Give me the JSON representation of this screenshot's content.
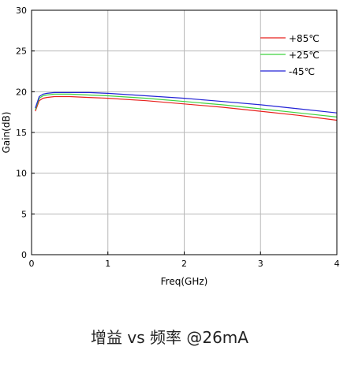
{
  "caption": "增益 vs 频率 @26mA",
  "chart_data": {
    "type": "line",
    "title": "",
    "xlabel": "Freq(GHz)",
    "ylabel": "Gain(dB)",
    "xlim": [
      0,
      4
    ],
    "ylim": [
      0,
      30
    ],
    "xticks": [
      0,
      1,
      2,
      3,
      4
    ],
    "yticks": [
      0,
      5,
      10,
      15,
      20,
      25,
      30
    ],
    "grid": true,
    "legend_position": "top-right",
    "series": [
      {
        "name": "+85℃",
        "color": "#e8211d",
        "x": [
          0.05,
          0.1,
          0.15,
          0.2,
          0.3,
          0.4,
          0.5,
          0.75,
          1.0,
          1.5,
          2.0,
          2.5,
          3.0,
          3.5,
          4.0
        ],
        "y": [
          17.6,
          18.9,
          19.2,
          19.3,
          19.4,
          19.4,
          19.4,
          19.3,
          19.2,
          18.9,
          18.5,
          18.1,
          17.6,
          17.1,
          16.5
        ]
      },
      {
        "name": "+25℃",
        "color": "#3fd23f",
        "x": [
          0.05,
          0.1,
          0.15,
          0.2,
          0.3,
          0.4,
          0.5,
          0.75,
          1.0,
          1.5,
          2.0,
          2.5,
          3.0,
          3.5,
          4.0
        ],
        "y": [
          17.8,
          19.2,
          19.5,
          19.6,
          19.7,
          19.7,
          19.7,
          19.6,
          19.5,
          19.2,
          18.8,
          18.4,
          17.9,
          17.4,
          16.9
        ]
      },
      {
        "name": "-45℃",
        "color": "#2323d6",
        "x": [
          0.05,
          0.1,
          0.15,
          0.2,
          0.3,
          0.4,
          0.5,
          0.75,
          1.0,
          1.5,
          2.0,
          2.5,
          3.0,
          3.5,
          4.0
        ],
        "y": [
          18.0,
          19.4,
          19.7,
          19.8,
          19.9,
          19.9,
          19.9,
          19.9,
          19.8,
          19.5,
          19.2,
          18.8,
          18.4,
          17.9,
          17.4
        ]
      }
    ]
  }
}
